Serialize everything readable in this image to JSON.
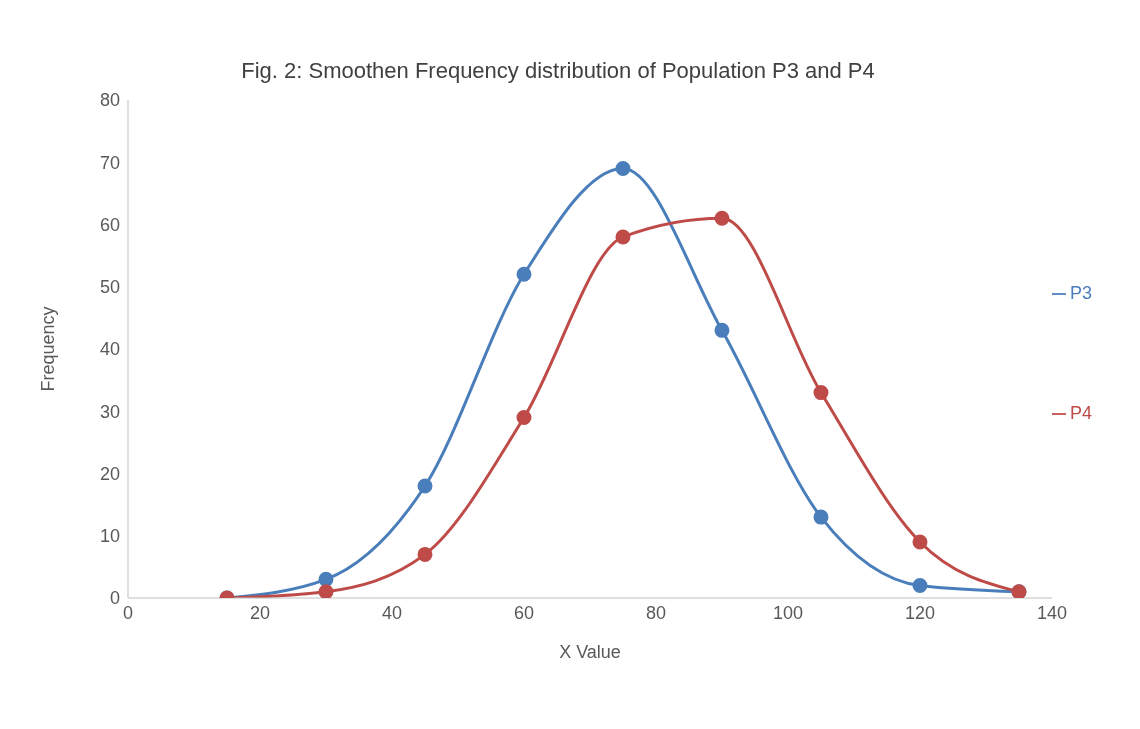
{
  "chart_data": {
    "type": "line",
    "title": "Fig. 2: Smoothen Frequency distribution of Population P3 and P4",
    "xlabel": "X Value",
    "ylabel": "Frequency",
    "x": [
      15,
      30,
      45,
      60,
      75,
      90,
      105,
      120,
      135
    ],
    "series": [
      {
        "name": "P3",
        "color": "#4a7ebb",
        "values": [
          0,
          3,
          18,
          52,
          69,
          43,
          13,
          2,
          1
        ]
      },
      {
        "name": "P4",
        "color": "#be4b48",
        "values": [
          0,
          1,
          7,
          29,
          58,
          61,
          33,
          9,
          1
        ]
      }
    ],
    "xlim": [
      0,
      140
    ],
    "xticks": [
      0,
      20,
      40,
      60,
      80,
      100,
      120,
      140
    ],
    "ylim": [
      0,
      80
    ],
    "yticks": [
      0,
      10,
      20,
      30,
      40,
      50,
      60,
      70,
      80
    ],
    "grid": false,
    "legend": "right",
    "marker": "circle",
    "line_style": "solid"
  }
}
